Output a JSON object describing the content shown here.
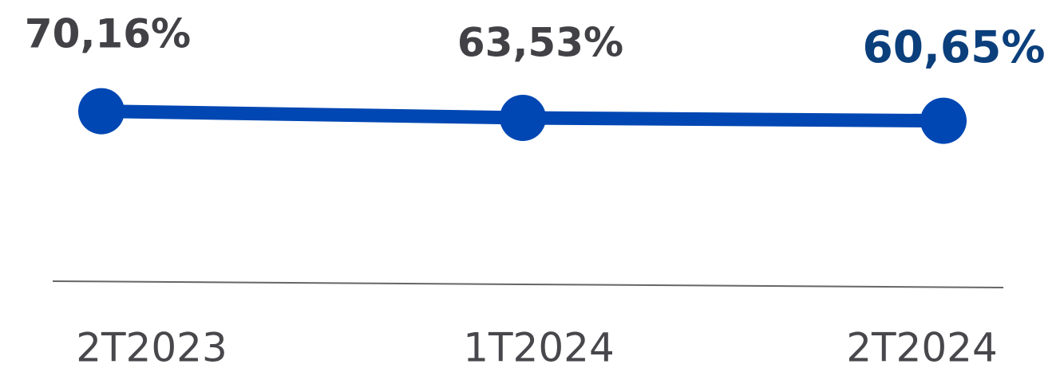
{
  "chart_data": {
    "type": "line",
    "categories": [
      "2T2023",
      "1T2024",
      "2T2024"
    ],
    "series": [
      {
        "color": "#0047b3",
        "values": [
          70.16,
          63.53,
          60.65
        ],
        "value_labels": [
          "70,16%",
          "63,53%",
          "60,65%"
        ],
        "value_label_colors": [
          "#414146",
          "#414146",
          "#0b3f7c"
        ]
      }
    ],
    "ylim": [
      0,
      100
    ]
  }
}
